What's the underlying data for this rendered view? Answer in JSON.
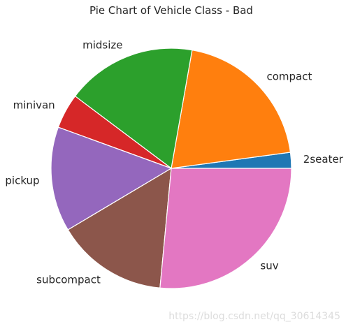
{
  "chart_data": {
    "type": "pie",
    "title": "Pie Chart of Vehicle Class - Bad",
    "categories": [
      "2seater",
      "compact",
      "midsize",
      "minivan",
      "pickup",
      "subcompact",
      "suv"
    ],
    "values": [
      5,
      47,
      41,
      11,
      33,
      35,
      62
    ],
    "colors": [
      "#1f77b4",
      "#ff7f0e",
      "#2ca02c",
      "#d62728",
      "#9467bd",
      "#8c564b",
      "#e377c2"
    ],
    "start_angle_deg": 0,
    "direction": "counterclockwise",
    "legend": "none"
  },
  "watermark": "https://blog.csdn.net/qq_30614345"
}
